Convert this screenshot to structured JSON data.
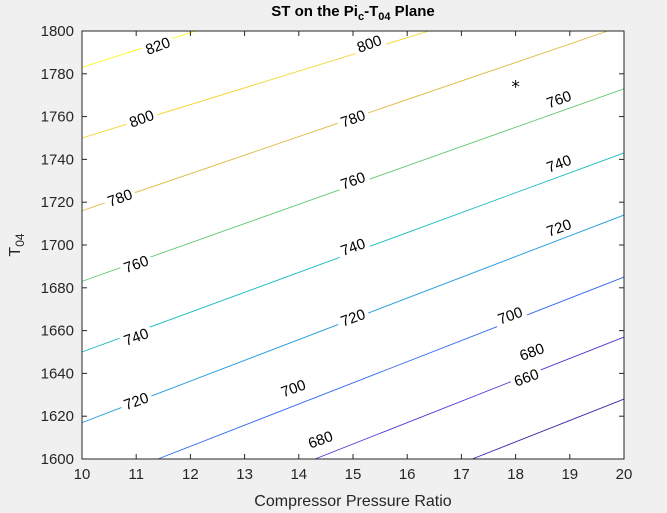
{
  "window": {
    "background": "#f0f0f0",
    "axes_background": "#ffffff"
  },
  "chart_data": {
    "type": "contour",
    "title": {
      "prefix": "ST on the Pi",
      "sub1": "c",
      "middle": "-T",
      "sub2": "04",
      "suffix": " Plane"
    },
    "xlabel": "Compressor Pressure Ratio",
    "ylabel": {
      "base": "T",
      "sub": "04"
    },
    "xlim": [
      10,
      20
    ],
    "ylim": [
      1600,
      1800
    ],
    "xticks": [
      10,
      11,
      12,
      13,
      14,
      15,
      16,
      17,
      18,
      19,
      20
    ],
    "yticks": [
      1600,
      1620,
      1640,
      1660,
      1680,
      1700,
      1720,
      1740,
      1760,
      1780,
      1800
    ],
    "contours": [
      {
        "level": 660,
        "color": "#3d26a8",
        "p1": [
          17.2,
          1600
        ],
        "p2": [
          20,
          1628
        ]
      },
      {
        "level": 680,
        "color": "#4537d5",
        "p1": [
          14.3,
          1600
        ],
        "p2": [
          20,
          1657
        ]
      },
      {
        "level": 700,
        "color": "#2e65f5",
        "p1": [
          11.4,
          1600
        ],
        "p2": [
          20,
          1685
        ]
      },
      {
        "level": 720,
        "color": "#1c99de",
        "p1": [
          10,
          1617
        ],
        "p2": [
          20,
          1714
        ]
      },
      {
        "level": 740,
        "color": "#14bac1",
        "p1": [
          10,
          1650
        ],
        "p2": [
          20,
          1743
        ]
      },
      {
        "level": 760,
        "color": "#64cb6f",
        "p1": [
          10,
          1683
        ],
        "p2": [
          20,
          1773
        ]
      },
      {
        "level": 780,
        "color": "#e1b83d",
        "p1": [
          10,
          1716
        ],
        "p2": [
          19.7,
          1800
        ]
      },
      {
        "level": 800,
        "color": "#f5d428",
        "p1": [
          10,
          1750
        ],
        "p2": [
          16.4,
          1800
        ]
      },
      {
        "level": 820,
        "color": "#f9fb0e",
        "p1": [
          10,
          1783
        ],
        "p2": [
          12.1,
          1800
        ]
      }
    ],
    "contour_labels": [
      {
        "text": "660",
        "x": 18.2,
        "y": 1638
      },
      {
        "text": "680",
        "x": 14.4,
        "y": 1609
      },
      {
        "text": "680",
        "x": 18.3,
        "y": 1650
      },
      {
        "text": "700",
        "x": 13.9,
        "y": 1633
      },
      {
        "text": "700",
        "x": 17.9,
        "y": 1667
      },
      {
        "text": "720",
        "x": 11.0,
        "y": 1627
      },
      {
        "text": "720",
        "x": 15.0,
        "y": 1666
      },
      {
        "text": "720",
        "x": 18.8,
        "y": 1708
      },
      {
        "text": "740",
        "x": 11.0,
        "y": 1657
      },
      {
        "text": "740",
        "x": 15.0,
        "y": 1699
      },
      {
        "text": "740",
        "x": 18.8,
        "y": 1738
      },
      {
        "text": "760",
        "x": 11.0,
        "y": 1691
      },
      {
        "text": "760",
        "x": 15.0,
        "y": 1730
      },
      {
        "text": "760",
        "x": 18.8,
        "y": 1768
      },
      {
        "text": "780",
        "x": 10.7,
        "y": 1722
      },
      {
        "text": "780",
        "x": 15.0,
        "y": 1759
      },
      {
        "text": "800",
        "x": 11.1,
        "y": 1759
      },
      {
        "text": "800",
        "x": 15.3,
        "y": 1794
      },
      {
        "text": "820",
        "x": 11.4,
        "y": 1793
      }
    ],
    "marker": {
      "symbol": "*",
      "x": 18,
      "y": 1775
    },
    "grid": false
  }
}
